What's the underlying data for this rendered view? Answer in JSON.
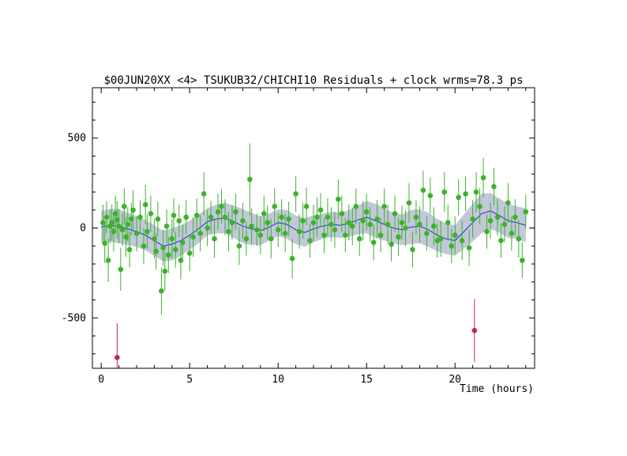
{
  "chart_data": {
    "type": "scatter",
    "title": "$00JUN20XX <4> TSUKUB32/CHICHI10 Residuals + clock wrms=78.3  ps",
    "xlabel": "Time (hours)",
    "ylabel": "",
    "xlim": [
      -0.5,
      24.5
    ],
    "ylim": [
      -780,
      780
    ],
    "x_ticks": [
      0,
      5,
      10,
      15,
      20
    ],
    "x_tick_labels": [
      "0",
      "5",
      "10",
      "15",
      "20"
    ],
    "y_ticks": [
      500,
      0,
      -500
    ],
    "y_tick_labels": [
      "500",
      "0",
      "-500"
    ],
    "grid": false,
    "colors": {
      "good_points": "#3cb22a",
      "bad_points": "#c0284a",
      "clock_line": "#2a2acc",
      "clock_band": "#c2c8d8"
    },
    "clock_model": {
      "x": [
        0,
        0.5,
        1,
        1.5,
        2,
        2.5,
        3,
        3.5,
        4,
        4.5,
        5,
        5.5,
        6,
        6.5,
        7,
        7.5,
        8,
        8.5,
        9,
        9.5,
        10,
        10.5,
        11,
        11.5,
        12,
        12.5,
        13,
        13.5,
        14,
        14.5,
        15,
        15.5,
        16,
        16.5,
        17,
        17.5,
        18,
        18.5,
        19,
        19.5,
        20,
        20.5,
        21,
        21.5,
        22,
        22.5,
        23,
        23.5,
        24
      ],
      "y": [
        5,
        15,
        10,
        -5,
        -20,
        -40,
        -70,
        -100,
        -90,
        -70,
        -40,
        -5,
        35,
        50,
        55,
        35,
        10,
        -5,
        -15,
        5,
        30,
        20,
        -10,
        -25,
        -5,
        10,
        20,
        15,
        25,
        45,
        60,
        40,
        20,
        0,
        -10,
        5,
        10,
        -10,
        -40,
        -60,
        -70,
        -20,
        30,
        80,
        95,
        70,
        40,
        30,
        15
      ],
      "band_halfwidth": [
        90,
        90,
        95,
        90,
        85,
        85,
        85,
        85,
        90,
        85,
        80,
        80,
        75,
        80,
        85,
        90,
        95,
        90,
        80,
        75,
        75,
        80,
        80,
        80,
        75,
        70,
        70,
        70,
        75,
        80,
        90,
        95,
        90,
        85,
        85,
        95,
        95,
        95,
        90,
        85,
        85,
        95,
        105,
        110,
        100,
        95,
        95,
        90,
        95
      ]
    },
    "series": [
      {
        "x": [
          0.1,
          0.2,
          0.3,
          0.4,
          0.5,
          0.6,
          0.7,
          0.8,
          0.9,
          1.0,
          1.1,
          1.2,
          1.3,
          1.4,
          1.5,
          1.6,
          1.7,
          1.8,
          2.0,
          2.2,
          2.4,
          2.5,
          2.6,
          2.8,
          3.0,
          3.1,
          3.2,
          3.4,
          3.5,
          3.6,
          3.7,
          3.8,
          4.0,
          4.1,
          4.2,
          4.4,
          4.5,
          4.6,
          4.8,
          5.0,
          5.2,
          5.4,
          5.6,
          5.8,
          6.0,
          6.2,
          6.4,
          6.6,
          6.8,
          7.0,
          7.2,
          7.4,
          7.6,
          7.8,
          8.0,
          8.2,
          8.4,
          8.5,
          8.8,
          9.0,
          9.2,
          9.4,
          9.6,
          9.8,
          10.0,
          10.2,
          10.4,
          10.6,
          10.8,
          11.0,
          11.2,
          11.4,
          11.6,
          11.8,
          12.0,
          12.2,
          12.4,
          12.6,
          12.8,
          13.0,
          13.2,
          13.4,
          13.6,
          13.8,
          14.0,
          14.2,
          14.4,
          14.6,
          14.8,
          15.0,
          15.2,
          15.4,
          15.6,
          15.8,
          16.0,
          16.2,
          16.4,
          16.6,
          16.8,
          17.0,
          17.2,
          17.4,
          17.6,
          17.8,
          18.0,
          18.2,
          18.4,
          18.6,
          18.8,
          19.0,
          19.2,
          19.4,
          19.6,
          19.8,
          20.0,
          20.2,
          20.4,
          20.6,
          20.8,
          21.0,
          21.2,
          21.4,
          21.6,
          21.8,
          22.0,
          22.2,
          22.4,
          22.6,
          22.8,
          23.0,
          23.2,
          23.4,
          23.6,
          23.8,
          24.0
        ],
        "y": [
          30,
          -85,
          60,
          -180,
          10,
          30,
          -20,
          80,
          45,
          10,
          -230,
          -10,
          120,
          -50,
          20,
          -120,
          50,
          100,
          -30,
          60,
          -100,
          130,
          -20,
          80,
          -60,
          -130,
          50,
          -350,
          -110,
          -240,
          10,
          -150,
          -60,
          70,
          -120,
          40,
          -180,
          -80,
          60,
          -140,
          -50,
          70,
          -30,
          190,
          0,
          60,
          -60,
          90,
          120,
          60,
          -20,
          30,
          90,
          -100,
          40,
          -60,
          270,
          10,
          -10,
          -40,
          80,
          30,
          -60,
          120,
          -10,
          60,
          -30,
          50,
          -170,
          190,
          -20,
          40,
          120,
          -70,
          30,
          60,
          100,
          -40,
          60,
          20,
          -10,
          160,
          80,
          -40,
          30,
          10,
          120,
          -60,
          40,
          90,
          20,
          -80,
          50,
          -40,
          120,
          20,
          -90,
          80,
          -50,
          30,
          0,
          140,
          -120,
          60,
          20,
          210,
          -30,
          180,
          10,
          -70,
          -60,
          200,
          30,
          -100,
          -40,
          170,
          -70,
          190,
          -110,
          50,
          200,
          120,
          280,
          -20,
          40,
          230,
          60,
          -70,
          20,
          140,
          -30,
          60,
          -60,
          -180,
          90
        ],
        "err": [
          100,
          110,
          90,
          120,
          95,
          100,
          110,
          100,
          105,
          95,
          120,
          90,
          100,
          110,
          95,
          100,
          90,
          110,
          100,
          95,
          100,
          110,
          95,
          100,
          110,
          100,
          95,
          130,
          100,
          110,
          95,
          100,
          110,
          95,
          100,
          90,
          105,
          100,
          95,
          100,
          110,
          95,
          100,
          120,
          100,
          90,
          105,
          100,
          95,
          100,
          110,
          95,
          100,
          105,
          100,
          95,
          200,
          100,
          90,
          105,
          100,
          95,
          110,
          100,
          95,
          100,
          105,
          95,
          110,
          100,
          95,
          100,
          105,
          95,
          100,
          110,
          95,
          100,
          105,
          95,
          100,
          110,
          100,
          95,
          100,
          105,
          100,
          95,
          110,
          100,
          95,
          100,
          105,
          95,
          100,
          110,
          95,
          100,
          105,
          95,
          100,
          110,
          100,
          95,
          100,
          110,
          95,
          100,
          105,
          95,
          100,
          110,
          100,
          95,
          105,
          100,
          110,
          95,
          100,
          105,
          110,
          100,
          110,
          95,
          100,
          105,
          100,
          95,
          100,
          110,
          95,
          100,
          105,
          100,
          95
        ]
      },
      {
        "x": [
          0.9,
          21.1
        ],
        "y": [
          -720,
          -570
        ],
        "err": [
          190,
          175
        ]
      }
    ]
  }
}
